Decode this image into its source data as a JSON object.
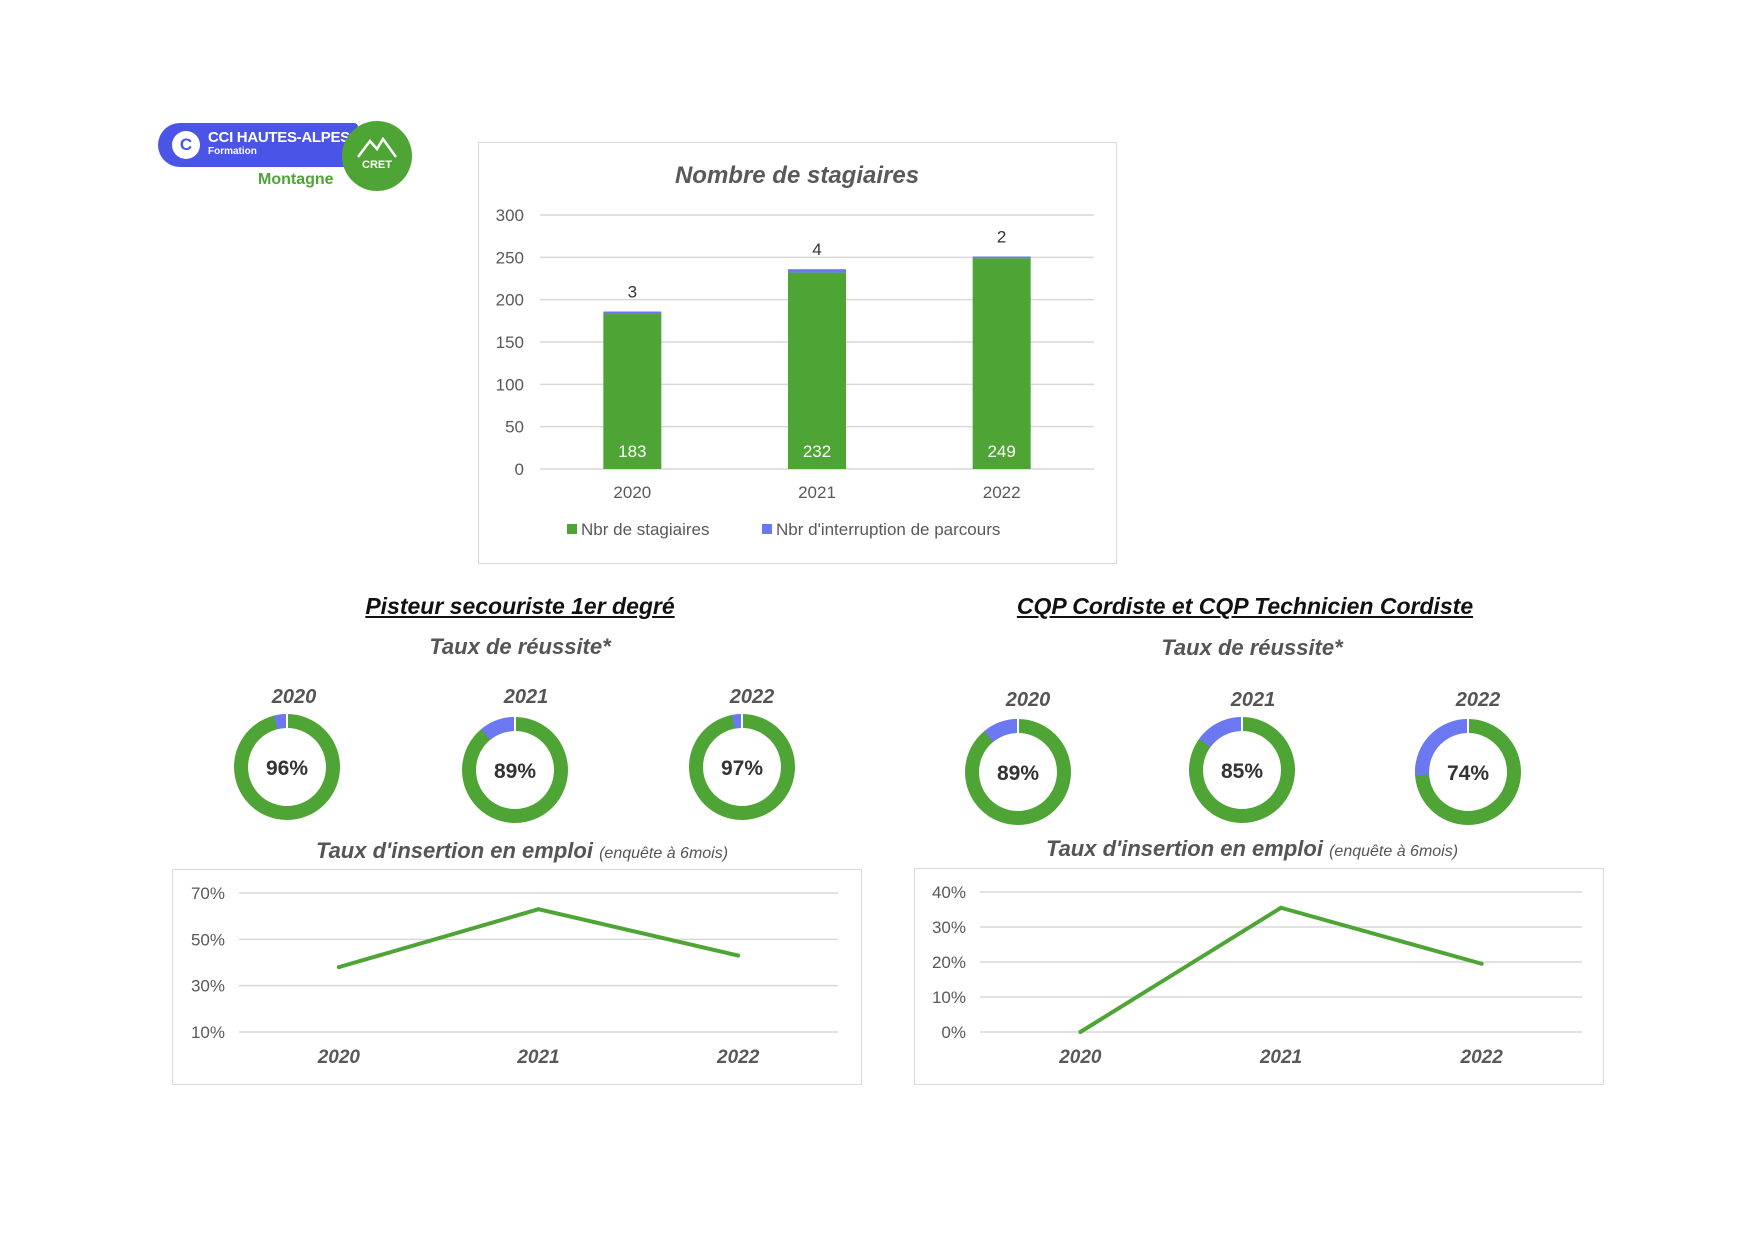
{
  "logo": {
    "title": "CCI HAUTES-ALPES",
    "subtitle": "Formation",
    "tagline": "Montagne",
    "badge": "CRET"
  },
  "colors": {
    "green": "#4ea434",
    "blue": "#6b78f2",
    "grid": "#d9d9d9",
    "text": "#595959"
  },
  "sections": {
    "left_title": "Pisteur secouriste 1er degré",
    "right_title": "CQP Cordiste et CQP Technicien Cordiste",
    "success_label": "Taux de réussite*",
    "insertion_label": "Taux d'insertion en emploi",
    "insertion_note": "(enquête à 6mois)"
  },
  "chart_data": [
    {
      "id": "stagiaires",
      "type": "bar",
      "stacked": true,
      "title": "Nombre de stagiaires",
      "categories": [
        "2020",
        "2021",
        "2022"
      ],
      "series": [
        {
          "name": "Nbr de stagiaires",
          "values": [
            183,
            232,
            249
          ],
          "color": "#4ea434"
        },
        {
          "name": "Nbr d'interruption de parcours",
          "values": [
            3,
            4,
            2
          ],
          "color": "#6b78f2"
        }
      ],
      "ylim": [
        0,
        300
      ],
      "yticks": [
        0,
        50,
        100,
        150,
        200,
        250,
        300
      ],
      "grid": true,
      "legend": "bottom"
    },
    {
      "id": "pisteur-reussite",
      "type": "pie",
      "donut": true,
      "categories": [
        "2020",
        "2021",
        "2022"
      ],
      "values": [
        96,
        89,
        97
      ],
      "labels": [
        "96%",
        "89%",
        "97%"
      ]
    },
    {
      "id": "cordiste-reussite",
      "type": "pie",
      "donut": true,
      "categories": [
        "2020",
        "2021",
        "2022"
      ],
      "values": [
        89,
        85,
        74
      ],
      "labels": [
        "89%",
        "85%",
        "74%"
      ]
    },
    {
      "id": "pisteur-insertion",
      "type": "line",
      "categories": [
        "2020",
        "2021",
        "2022"
      ],
      "values": [
        0.38,
        0.63,
        0.43
      ],
      "ylim": [
        0.1,
        0.7
      ],
      "yticks": [
        0.1,
        0.3,
        0.5,
        0.7
      ],
      "ytick_labels": [
        "10%",
        "30%",
        "50%",
        "70%"
      ],
      "grid": true
    },
    {
      "id": "cordiste-insertion",
      "type": "line",
      "categories": [
        "2020",
        "2021",
        "2022"
      ],
      "values": [
        0.0,
        0.355,
        0.195
      ],
      "ylim": [
        0.0,
        0.4
      ],
      "yticks": [
        0.0,
        0.1,
        0.2,
        0.3,
        0.4
      ],
      "ytick_labels": [
        "0%",
        "10%",
        "20%",
        "30%",
        "40%"
      ],
      "grid": true
    }
  ]
}
